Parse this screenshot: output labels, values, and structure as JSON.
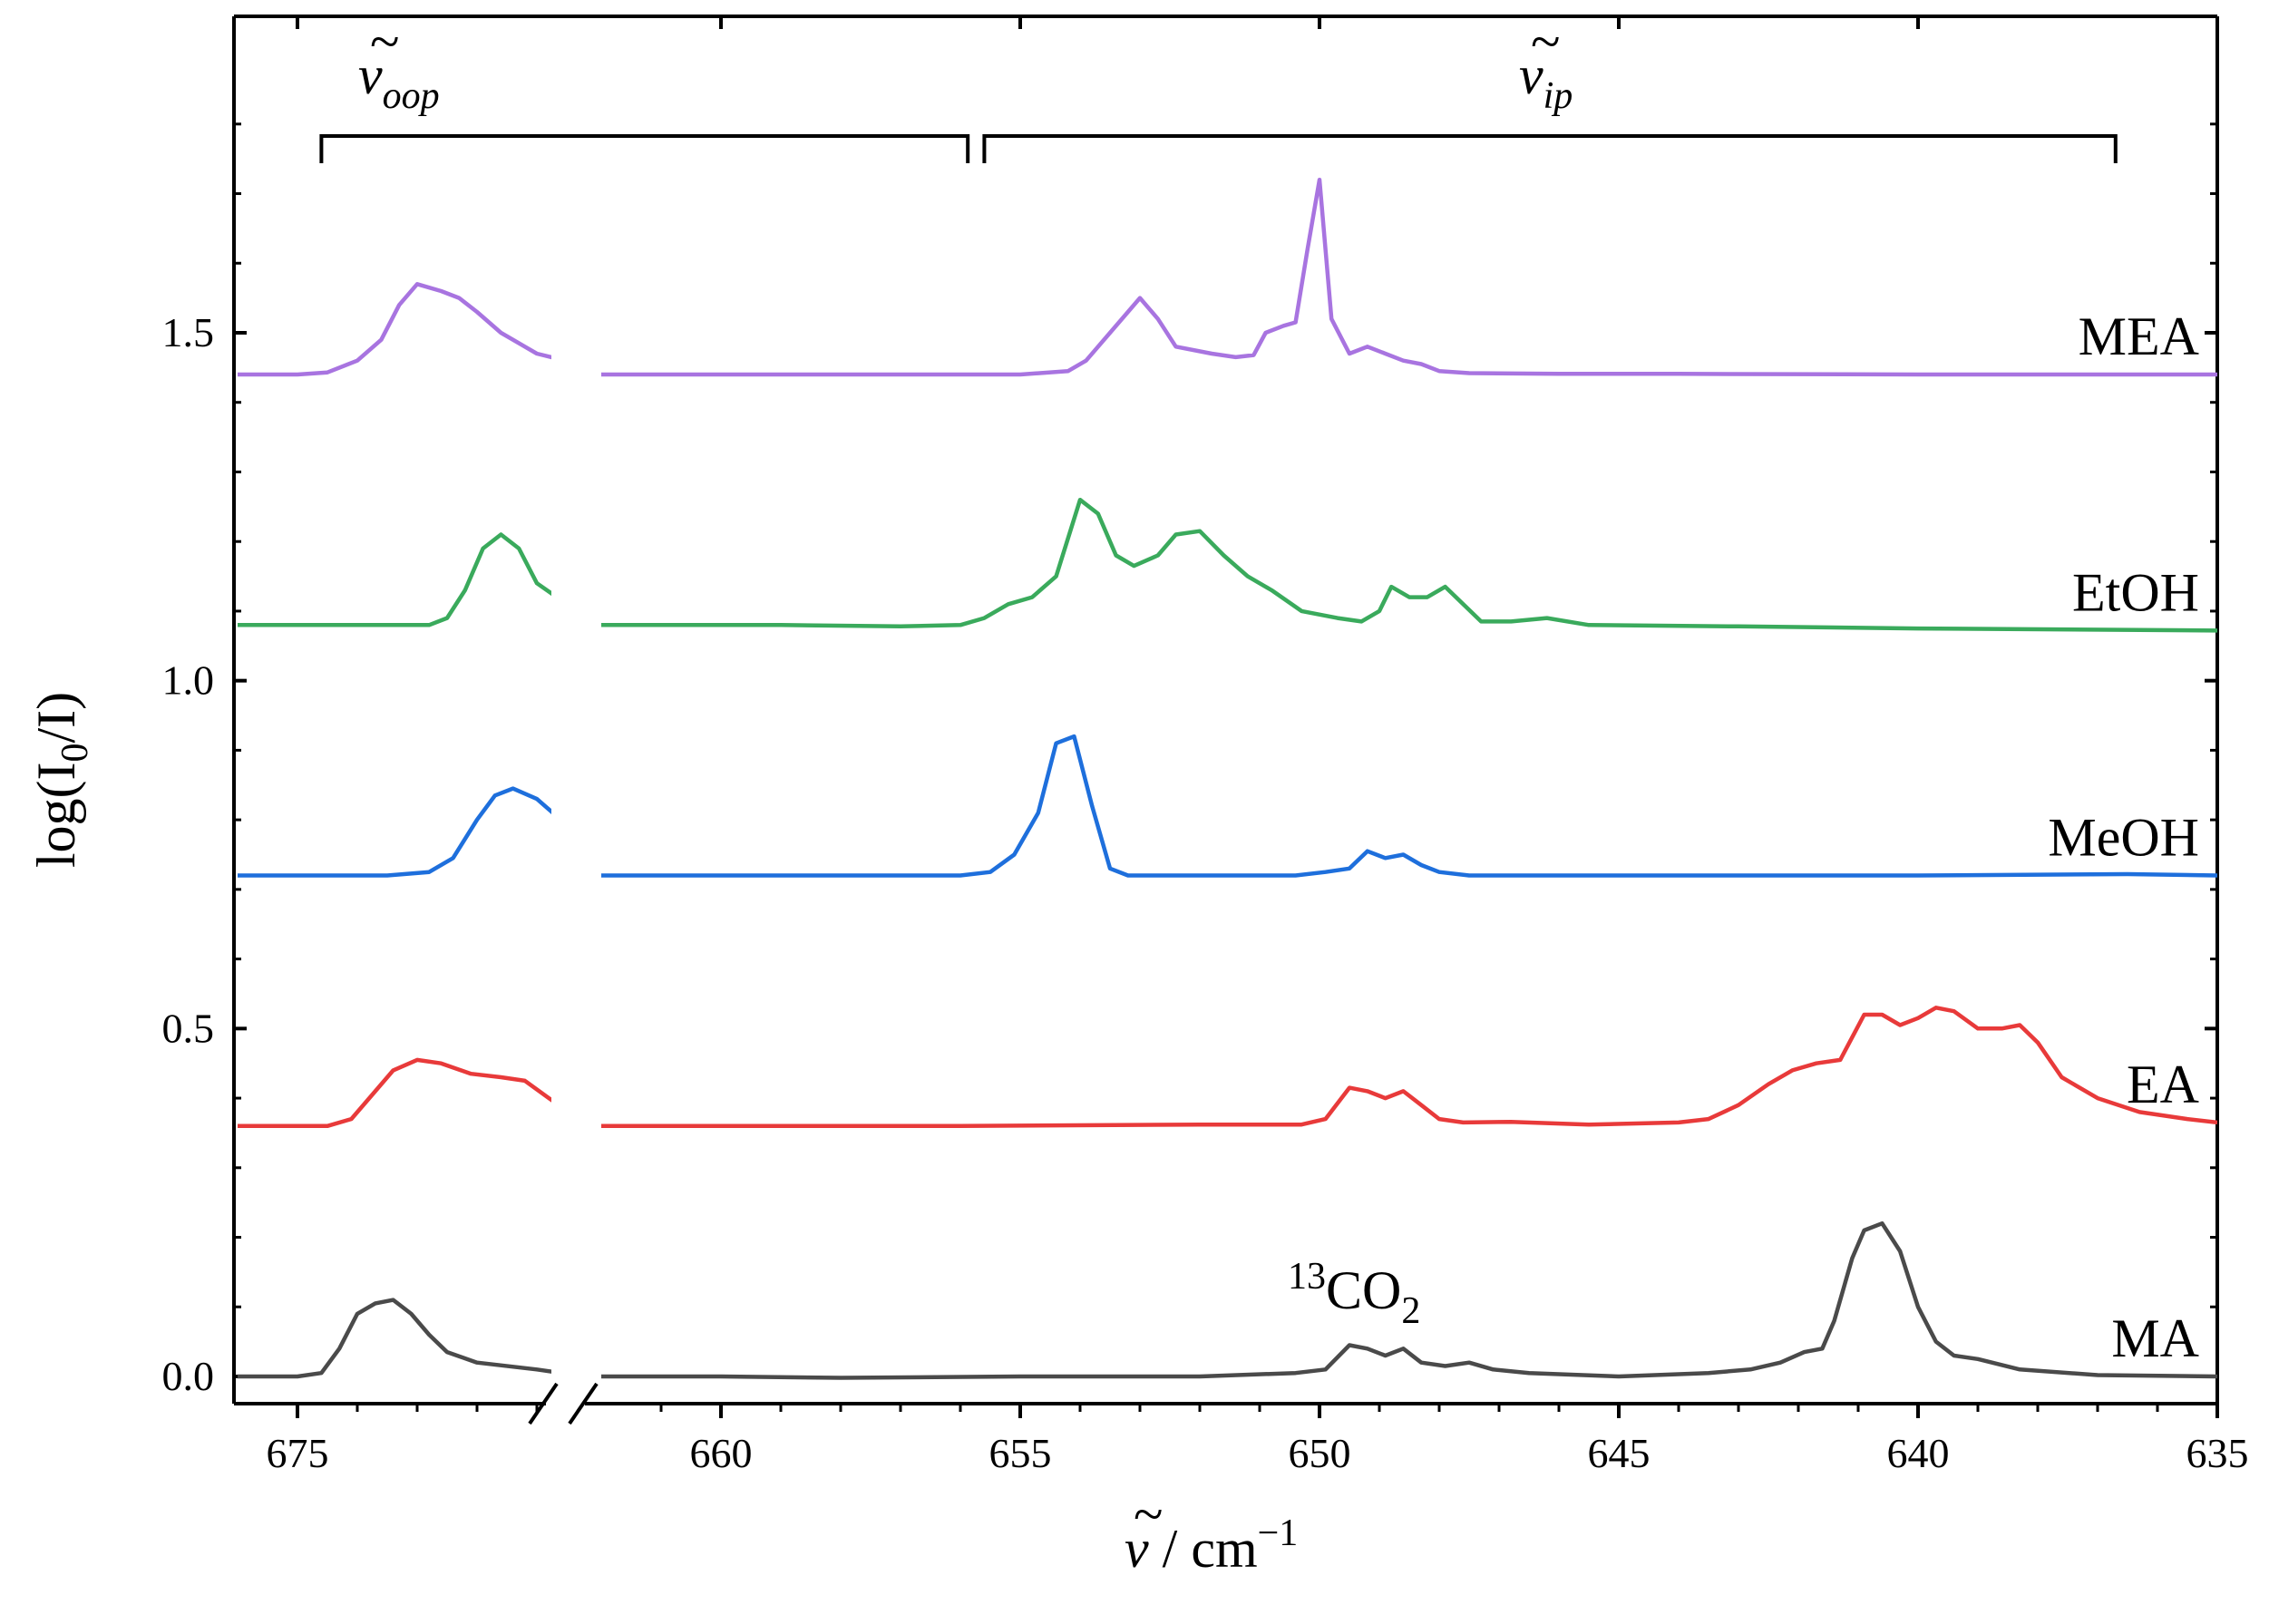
{
  "chart_data": {
    "type": "line",
    "title": "",
    "xlabel_symbol": "ν",
    "xlabel_separator": " / ",
    "xlabel_unit": "cm",
    "xlabel_exp": "−1",
    "ylabel_main": "log(I",
    "ylabel_sub": "0",
    "ylabel_end": "/I)",
    "xlim": [
      676,
      635
    ],
    "ylim": [
      -0.04,
      1.95
    ],
    "axis_break": {
      "from": 663.2,
      "to": 662.3,
      "segment1": [
        676,
        663.5
      ],
      "segment2": [
        662.0,
        635
      ]
    },
    "x_ticks": [
      "675",
      "660",
      "655",
      "650",
      "645",
      "640",
      "635"
    ],
    "x_tick_values": [
      675,
      660,
      655,
      650,
      645,
      640,
      635
    ],
    "y_ticks": [
      "0.0",
      "0.5",
      "1.0",
      "1.5"
    ],
    "y_tick_values": [
      0.0,
      0.5,
      1.0,
      1.5
    ],
    "annotations": {
      "oop": {
        "symbol": "ν",
        "subscript": "oop",
        "range": [
          674.6,
          663.8
        ]
      },
      "ip": {
        "symbol": "ν",
        "subscript": "ip",
        "range": [
          655.6,
          636.7
        ]
      },
      "co2": {
        "prefix": "13",
        "text": "CO",
        "subscript": "2",
        "x": 649.3,
        "y": 0.05
      }
    },
    "series": [
      {
        "name": "MEA",
        "color": "#a874e0",
        "points": [
          [
            676,
            1.44
          ],
          [
            675,
            1.44
          ],
          [
            674.5,
            1.443
          ],
          [
            674,
            1.46
          ],
          [
            673.6,
            1.49
          ],
          [
            673.3,
            1.54
          ],
          [
            673,
            1.57
          ],
          [
            672.6,
            1.56
          ],
          [
            672.3,
            1.55
          ],
          [
            672,
            1.53
          ],
          [
            671.6,
            1.5
          ],
          [
            671,
            1.47
          ],
          [
            670.3,
            1.455
          ],
          [
            669.5,
            1.45
          ],
          [
            668.5,
            1.448
          ],
          [
            663.5,
            1.446
          ],
          [
            662.0,
            1.44
          ],
          [
            658,
            1.44
          ],
          [
            656,
            1.44
          ],
          [
            655,
            1.44
          ],
          [
            654.2,
            1.445
          ],
          [
            653.9,
            1.46
          ],
          [
            653.5,
            1.5
          ],
          [
            653.2,
            1.53
          ],
          [
            653.0,
            1.55
          ],
          [
            652.7,
            1.52
          ],
          [
            652.4,
            1.48
          ],
          [
            651.8,
            1.47
          ],
          [
            651.4,
            1.465
          ],
          [
            651.1,
            1.468
          ],
          [
            650.9,
            1.5
          ],
          [
            650.6,
            1.51
          ],
          [
            650.4,
            1.515
          ],
          [
            650.2,
            1.62
          ],
          [
            650.0,
            1.72
          ],
          [
            649.8,
            1.52
          ],
          [
            649.5,
            1.47
          ],
          [
            649.2,
            1.48
          ],
          [
            648.9,
            1.47
          ],
          [
            648.6,
            1.46
          ],
          [
            648.3,
            1.455
          ],
          [
            648.0,
            1.445
          ],
          [
            647.5,
            1.442
          ],
          [
            646,
            1.441
          ],
          [
            644,
            1.441
          ],
          [
            640,
            1.44
          ],
          [
            635,
            1.44
          ]
        ]
      },
      {
        "name": "EtOH",
        "color": "#3aaa5c",
        "points": [
          [
            676,
            1.08
          ],
          [
            674,
            1.08
          ],
          [
            672.8,
            1.08
          ],
          [
            672.5,
            1.09
          ],
          [
            672.2,
            1.13
          ],
          [
            671.9,
            1.19
          ],
          [
            671.6,
            1.21
          ],
          [
            671.3,
            1.19
          ],
          [
            671,
            1.14
          ],
          [
            670.5,
            1.11
          ],
          [
            670,
            1.085
          ],
          [
            663.5,
            1.082
          ],
          [
            662.0,
            1.08
          ],
          [
            659,
            1.08
          ],
          [
            657,
            1.078
          ],
          [
            656,
            1.08
          ],
          [
            655.6,
            1.09
          ],
          [
            655.2,
            1.11
          ],
          [
            654.8,
            1.12
          ],
          [
            654.4,
            1.15
          ],
          [
            654.0,
            1.26
          ],
          [
            653.7,
            1.24
          ],
          [
            653.4,
            1.18
          ],
          [
            653.1,
            1.165
          ],
          [
            652.7,
            1.18
          ],
          [
            652.4,
            1.21
          ],
          [
            652.0,
            1.215
          ],
          [
            651.6,
            1.18
          ],
          [
            651.2,
            1.15
          ],
          [
            650.8,
            1.13
          ],
          [
            650.3,
            1.1
          ],
          [
            649.7,
            1.09
          ],
          [
            649.3,
            1.085
          ],
          [
            649.0,
            1.1
          ],
          [
            648.8,
            1.135
          ],
          [
            648.5,
            1.12
          ],
          [
            648.2,
            1.12
          ],
          [
            647.9,
            1.135
          ],
          [
            647.6,
            1.11
          ],
          [
            647.3,
            1.085
          ],
          [
            646.8,
            1.085
          ],
          [
            646.2,
            1.09
          ],
          [
            645.5,
            1.08
          ],
          [
            643,
            1.078
          ],
          [
            640,
            1.075
          ],
          [
            635,
            1.072
          ]
        ]
      },
      {
        "name": "MeOH",
        "color": "#1e6fdc",
        "points": [
          [
            676,
            0.72
          ],
          [
            673.5,
            0.72
          ],
          [
            672.8,
            0.725
          ],
          [
            672.4,
            0.745
          ],
          [
            672.0,
            0.8
          ],
          [
            671.7,
            0.835
          ],
          [
            671.4,
            0.845
          ],
          [
            671.0,
            0.83
          ],
          [
            670.6,
            0.8
          ],
          [
            670.2,
            0.765
          ],
          [
            669.8,
            0.74
          ],
          [
            663.5,
            0.73
          ],
          [
            662.0,
            0.72
          ],
          [
            660,
            0.72
          ],
          [
            657,
            0.72
          ],
          [
            656,
            0.72
          ],
          [
            655.5,
            0.725
          ],
          [
            655.1,
            0.75
          ],
          [
            654.7,
            0.81
          ],
          [
            654.4,
            0.91
          ],
          [
            654.1,
            0.92
          ],
          [
            653.8,
            0.82
          ],
          [
            653.5,
            0.73
          ],
          [
            653.2,
            0.72
          ],
          [
            652,
            0.72
          ],
          [
            650.4,
            0.72
          ],
          [
            649.9,
            0.725
          ],
          [
            649.5,
            0.73
          ],
          [
            649.2,
            0.755
          ],
          [
            648.9,
            0.745
          ],
          [
            648.6,
            0.75
          ],
          [
            648.3,
            0.735
          ],
          [
            648.0,
            0.725
          ],
          [
            647.5,
            0.72
          ],
          [
            645,
            0.72
          ],
          [
            640,
            0.72
          ],
          [
            636.5,
            0.722
          ],
          [
            635,
            0.72
          ]
        ]
      },
      {
        "name": "EA",
        "color": "#e83a3a",
        "points": [
          [
            676,
            0.36
          ],
          [
            674.5,
            0.36
          ],
          [
            674.1,
            0.37
          ],
          [
            673.8,
            0.4
          ],
          [
            673.4,
            0.44
          ],
          [
            673.0,
            0.455
          ],
          [
            672.6,
            0.45
          ],
          [
            672.1,
            0.435
          ],
          [
            671.6,
            0.43
          ],
          [
            671.2,
            0.425
          ],
          [
            670.8,
            0.4
          ],
          [
            670.3,
            0.37
          ],
          [
            669.8,
            0.36
          ],
          [
            663.5,
            0.36
          ],
          [
            662.0,
            0.36
          ],
          [
            661,
            0.36
          ],
          [
            660,
            0.36
          ],
          [
            656,
            0.36
          ],
          [
            652,
            0.362
          ],
          [
            650.3,
            0.362
          ],
          [
            649.9,
            0.37
          ],
          [
            649.5,
            0.415
          ],
          [
            649.2,
            0.41
          ],
          [
            648.9,
            0.4
          ],
          [
            648.6,
            0.41
          ],
          [
            648.3,
            0.39
          ],
          [
            648.0,
            0.37
          ],
          [
            647.6,
            0.365
          ],
          [
            646.8,
            0.366
          ],
          [
            645.5,
            0.362
          ],
          [
            644,
            0.365
          ],
          [
            643.5,
            0.37
          ],
          [
            643,
            0.39
          ],
          [
            642.5,
            0.42
          ],
          [
            642.1,
            0.44
          ],
          [
            641.7,
            0.45
          ],
          [
            641.3,
            0.455
          ],
          [
            640.9,
            0.52
          ],
          [
            640.6,
            0.52
          ],
          [
            640.3,
            0.505
          ],
          [
            640.0,
            0.515
          ],
          [
            639.7,
            0.53
          ],
          [
            639.4,
            0.525
          ],
          [
            639.0,
            0.5
          ],
          [
            638.6,
            0.5
          ],
          [
            638.3,
            0.505
          ],
          [
            638.0,
            0.48
          ],
          [
            637.6,
            0.43
          ],
          [
            637.0,
            0.4
          ],
          [
            636.3,
            0.38
          ],
          [
            635.5,
            0.37
          ],
          [
            635,
            0.365
          ]
        ]
      },
      {
        "name": "MA",
        "color": "#4a4a4a",
        "points": [
          [
            676,
            0.0
          ],
          [
            675,
            0.0
          ],
          [
            674.6,
            0.005
          ],
          [
            674.3,
            0.04
          ],
          [
            674.0,
            0.09
          ],
          [
            673.7,
            0.105
          ],
          [
            673.4,
            0.11
          ],
          [
            673.1,
            0.09
          ],
          [
            672.8,
            0.06
          ],
          [
            672.5,
            0.035
          ],
          [
            672,
            0.02
          ],
          [
            671,
            0.01
          ],
          [
            670.2,
            0.0
          ],
          [
            669.5,
            0.002
          ],
          [
            663.5,
            0.005
          ],
          [
            662.0,
            0.0
          ],
          [
            660,
            0.0
          ],
          [
            658,
            -0.002
          ],
          [
            655,
            0.0
          ],
          [
            652,
            0.0
          ],
          [
            650.4,
            0.005
          ],
          [
            649.9,
            0.01
          ],
          [
            649.5,
            0.045
          ],
          [
            649.2,
            0.04
          ],
          [
            648.9,
            0.03
          ],
          [
            648.6,
            0.04
          ],
          [
            648.3,
            0.02
          ],
          [
            647.9,
            0.015
          ],
          [
            647.5,
            0.02
          ],
          [
            647.1,
            0.01
          ],
          [
            646.5,
            0.005
          ],
          [
            645,
            0.0
          ],
          [
            643.5,
            0.005
          ],
          [
            642.8,
            0.01
          ],
          [
            642.3,
            0.02
          ],
          [
            641.9,
            0.035
          ],
          [
            641.6,
            0.04
          ],
          [
            641.4,
            0.08
          ],
          [
            641.1,
            0.17
          ],
          [
            640.9,
            0.21
          ],
          [
            640.6,
            0.22
          ],
          [
            640.3,
            0.18
          ],
          [
            640.0,
            0.1
          ],
          [
            639.7,
            0.05
          ],
          [
            639.4,
            0.03
          ],
          [
            639.0,
            0.025
          ],
          [
            638.3,
            0.01
          ],
          [
            637,
            0.002
          ],
          [
            635,
            0.0
          ]
        ]
      }
    ]
  }
}
